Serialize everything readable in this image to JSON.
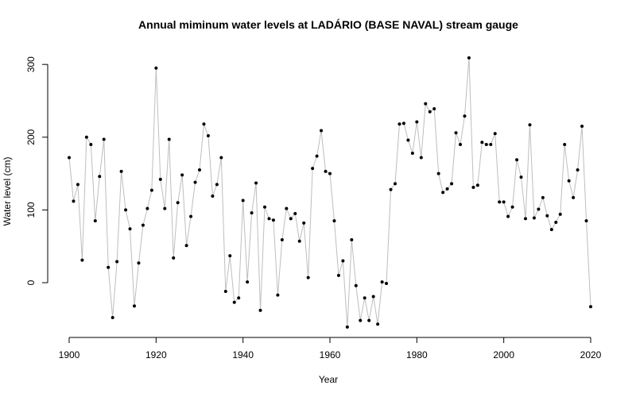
{
  "chart_data": {
    "type": "line",
    "title": "Annual miminum water levels at LADÁRIO (BASE NAVAL) stream gauge",
    "xlabel": "Year",
    "ylabel": "Water level (cm)",
    "xlim": [
      1900,
      2020
    ],
    "ylim": [
      -60,
      310
    ],
    "x_ticks": [
      1900,
      1920,
      1940,
      1960,
      1980,
      2000,
      2020
    ],
    "y_ticks": [
      0,
      100,
      200,
      300
    ],
    "colors": {
      "line": "#bebebe",
      "point": "#000000",
      "axis": "#000000"
    },
    "grid": false,
    "legend": "none",
    "x": [
      1900,
      1901,
      1902,
      1903,
      1904,
      1905,
      1906,
      1907,
      1908,
      1909,
      1910,
      1911,
      1912,
      1913,
      1914,
      1915,
      1916,
      1917,
      1918,
      1919,
      1920,
      1921,
      1922,
      1923,
      1924,
      1925,
      1926,
      1927,
      1928,
      1929,
      1930,
      1931,
      1932,
      1933,
      1934,
      1935,
      1936,
      1937,
      1938,
      1939,
      1940,
      1941,
      1942,
      1943,
      1944,
      1945,
      1946,
      1947,
      1948,
      1949,
      1950,
      1951,
      1952,
      1953,
      1954,
      1955,
      1956,
      1957,
      1958,
      1959,
      1960,
      1961,
      1962,
      1963,
      1964,
      1965,
      1966,
      1967,
      1968,
      1969,
      1970,
      1971,
      1972,
      1973,
      1974,
      1975,
      1976,
      1977,
      1978,
      1979,
      1980,
      1981,
      1982,
      1983,
      1984,
      1985,
      1986,
      1987,
      1988,
      1989,
      1990,
      1991,
      1992,
      1993,
      1994,
      1995,
      1996,
      1997,
      1998,
      1999,
      2000,
      2001,
      2002,
      2003,
      2004,
      2005,
      2006,
      2007,
      2008,
      2009,
      2010,
      2011,
      2012,
      2013,
      2014,
      2015,
      2016,
      2017,
      2018,
      2019,
      2020
    ],
    "y": [
      172,
      112,
      135,
      31,
      200,
      190,
      85,
      146,
      197,
      21,
      -48,
      29,
      153,
      100,
      74,
      -32,
      27,
      79,
      102,
      127,
      295,
      142,
      102,
      197,
      34,
      110,
      148,
      51,
      91,
      138,
      155,
      218,
      202,
      119,
      135,
      172,
      -12,
      37,
      -27,
      -21,
      113,
      1,
      96,
      137,
      -38,
      104,
      88,
      86,
      -17,
      59,
      102,
      88,
      95,
      57,
      82,
      7,
      157,
      174,
      209,
      153,
      150,
      85,
      10,
      30,
      -61,
      59,
      -4,
      -52,
      -21,
      -52,
      -19,
      -57,
      1,
      -1,
      128,
      136,
      218,
      219,
      196,
      178,
      221,
      172,
      246,
      235,
      239,
      150,
      124,
      129,
      136,
      206,
      190,
      229,
      309,
      131,
      134,
      193,
      190,
      190,
      205,
      111,
      111,
      91,
      104,
      169,
      145,
      88,
      217,
      89,
      101,
      117,
      92,
      73,
      83,
      94,
      190,
      140,
      117,
      155,
      215,
      85,
      -33
    ]
  }
}
